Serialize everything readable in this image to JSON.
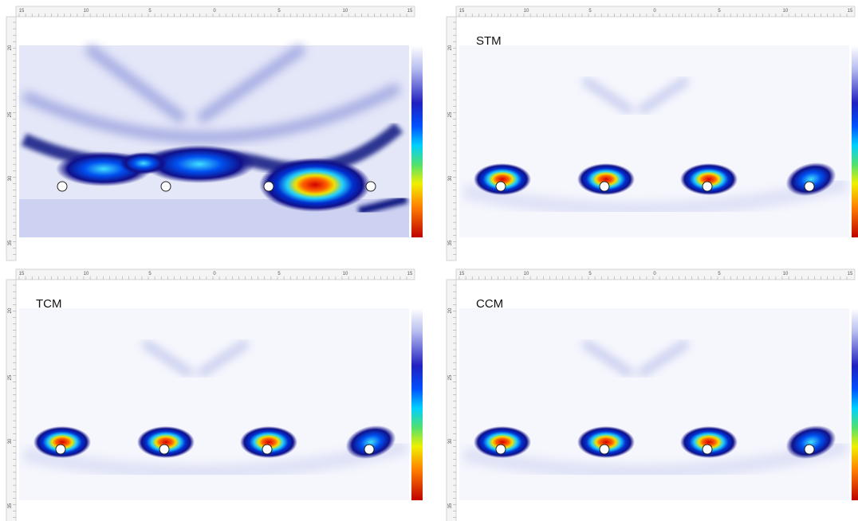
{
  "rulers": {
    "top": [
      "15",
      "10",
      "5",
      "0",
      "5",
      "10",
      "15"
    ],
    "left": [
      "20",
      "25",
      "30",
      "35"
    ]
  },
  "panels": [
    {},
    {
      "label": "STM"
    },
    {
      "label": "TCM"
    },
    {
      "label": "CCM"
    }
  ]
}
